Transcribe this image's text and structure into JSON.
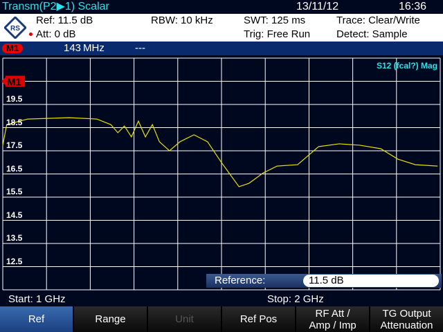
{
  "header": {
    "title": "Transm(P2▶1) Scalar",
    "date": "13/11/12",
    "time": "16:36"
  },
  "info": {
    "ref": "Ref:  11.5 dB",
    "att": "Att:  0 dB",
    "rbw": "RBW:   10 kHz",
    "swt": "SWT:   125 ms",
    "trig": "Trig:   Free Run",
    "trace": "Trace:   Clear/Write",
    "detect": "Detect:   Sample",
    "logo": "R&S"
  },
  "marker": {
    "tag": "M1",
    "freq": "143 MHz",
    "value": "---"
  },
  "plot": {
    "trace_label": "S12 (fcal?) Mag",
    "marker_label": "M1",
    "colors": {
      "trace": "#e8e000",
      "grid": "#ffffff",
      "marker": "#e00000"
    }
  },
  "chart_data": {
    "type": "line",
    "ylim": [
      11.5,
      21.5
    ],
    "xlim": [
      1,
      2
    ],
    "y_tick_labels": [
      "19.5",
      "18.5",
      "17.5",
      "16.5",
      "15.5",
      "14.5",
      "13.5",
      "12.5"
    ],
    "grid": true,
    "series": [
      {
        "x": [
          1.0,
          1.009,
          1.057,
          1.152,
          1.215,
          1.247,
          1.263,
          1.278,
          1.294,
          1.31,
          1.326,
          1.342,
          1.358,
          1.381,
          1.405,
          1.437,
          1.468,
          1.5,
          1.54,
          1.563,
          1.595,
          1.627,
          1.674,
          1.722,
          1.769,
          1.816,
          1.864,
          1.903,
          1.943,
          1.994
        ],
        "y": [
          17.74,
          18.63,
          18.87,
          18.93,
          18.87,
          18.63,
          18.28,
          18.57,
          18.1,
          18.78,
          18.1,
          18.63,
          17.89,
          17.5,
          17.89,
          18.19,
          17.89,
          16.99,
          15.95,
          16.1,
          16.54,
          16.84,
          16.9,
          17.68,
          17.8,
          17.74,
          17.59,
          17.14,
          16.9,
          16.84
        ]
      }
    ]
  },
  "reference": {
    "label": "Reference:",
    "value": "11.5 dB"
  },
  "footer": {
    "start": "Start:   1 GHz",
    "stop": "Stop:     2 GHz"
  },
  "softkeys": [
    "Ref",
    "Range",
    "Unit",
    "Ref Pos",
    "RF Att /\nAmp / Imp",
    "TG Output\nAttenuation"
  ]
}
